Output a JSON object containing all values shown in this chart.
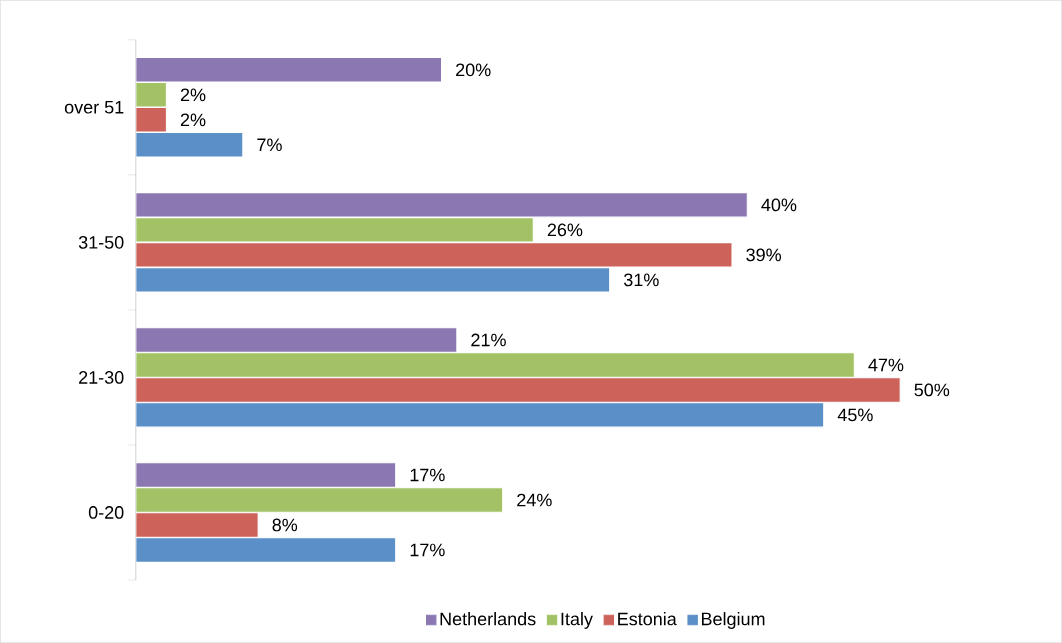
{
  "chart_data": {
    "type": "bar",
    "orientation": "horizontal",
    "categories": [
      "over 51",
      "31-50",
      "21-30",
      "0-20"
    ],
    "series": [
      {
        "name": "Netherlands",
        "color": "#8b78b2",
        "values": [
          20,
          40,
          21,
          17
        ],
        "value_labels": [
          "20%",
          "40%",
          "21%",
          "17%"
        ]
      },
      {
        "name": "Italy",
        "color": "#a3c266",
        "values": [
          2,
          26,
          47,
          24
        ],
        "value_labels": [
          "2%",
          "26%",
          "47%",
          "24%"
        ]
      },
      {
        "name": "Estonia",
        "color": "#cc625a",
        "values": [
          2,
          39,
          50,
          8
        ],
        "value_labels": [
          "2%",
          "39%",
          "50%",
          "8%"
        ]
      },
      {
        "name": "Belgium",
        "color": "#5b8fc8",
        "values": [
          7,
          31,
          45,
          17
        ],
        "value_labels": [
          "7%",
          "31%",
          "45%",
          "17%"
        ]
      }
    ],
    "legend": "bottom"
  }
}
